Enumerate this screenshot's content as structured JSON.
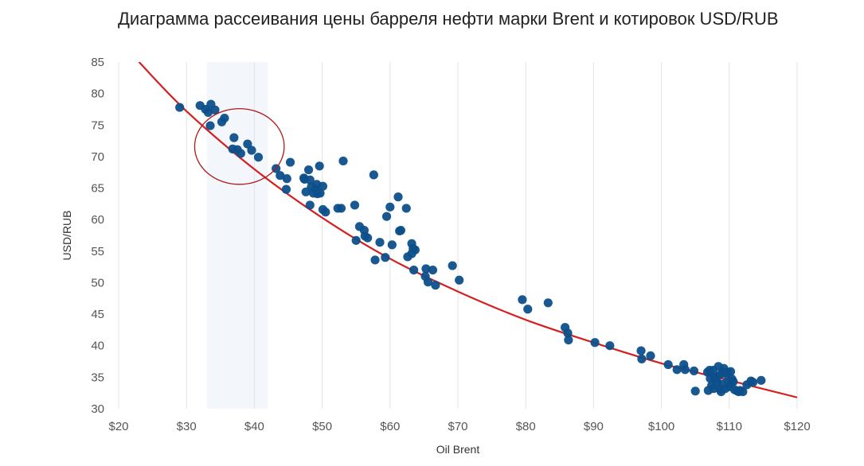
{
  "chart_data": {
    "type": "scatter",
    "title": "Диаграмма рассеивания цены барреля нефти марки Brent и котировок USD/RUB",
    "xlabel": "Oil Brent",
    "ylabel": "USD/RUB",
    "xlim": [
      20,
      120
    ],
    "ylim": [
      30,
      85
    ],
    "x_ticks": [
      20,
      30,
      40,
      50,
      60,
      70,
      80,
      90,
      100,
      110,
      120
    ],
    "x_tick_labels": [
      "$20",
      "$30",
      "$40",
      "$50",
      "$60",
      "$70",
      "$80",
      "$90",
      "$100",
      "$110",
      "$120"
    ],
    "y_ticks": [
      30,
      35,
      40,
      45,
      50,
      55,
      60,
      65,
      70,
      75,
      80,
      85
    ],
    "y_tick_labels": [
      "30",
      "35",
      "40",
      "45",
      "50",
      "55",
      "60",
      "65",
      "70",
      "75",
      "80",
      "85"
    ],
    "grid": "vertical",
    "colors": {
      "points": "#0d4f8b",
      "trendline": "#d42020",
      "highlight_band": "#f3f6fa",
      "ellipse": "#b01818"
    },
    "highlight_band": {
      "x_range": [
        33,
        42
      ]
    },
    "ellipse": {
      "center": [
        37.8,
        71.6
      ],
      "radius_x": 6.6,
      "radius_y": 6.0
    },
    "trendline": {
      "type": "curve",
      "x": [
        23,
        30,
        40,
        50,
        60,
        70,
        80,
        90,
        100,
        110,
        120
      ],
      "y": [
        85.0,
        77.2,
        68.0,
        60.3,
        53.8,
        48.6,
        44.1,
        40.5,
        37.2,
        34.5,
        31.8
      ]
    },
    "points": {
      "x": [
        29,
        32,
        32.8,
        33.2,
        33.6,
        34.2,
        35.2,
        35.6,
        33.5,
        37,
        37.5,
        38,
        39,
        39.6,
        40.6,
        36.8,
        43.2,
        43.8,
        44.8,
        45.3,
        44.7,
        47.3,
        47.6,
        48,
        48.2,
        48.4,
        48.7,
        49.2,
        49.6,
        50.1,
        47.4,
        48.2,
        49,
        49.3,
        50.1,
        50.5,
        52.3,
        52.8,
        49.7,
        53.1,
        54.8,
        55,
        55.5,
        56.2,
        56.7,
        56.3,
        57.8,
        57.6,
        58.5,
        59.3,
        59.5,
        60,
        60.3,
        61.2,
        61.4,
        61.6,
        62.4,
        62.6,
        63.2,
        63.4,
        63.7,
        63.2,
        63.5,
        65.3,
        65.2,
        65.6,
        66.3,
        66.7,
        69.2,
        70.2,
        79.5,
        80.3,
        83.3,
        85.8,
        86.2,
        86.3,
        90.2,
        92.4,
        97,
        97.1,
        98.4,
        101,
        102.3,
        103.3,
        103.5,
        104.8,
        105,
        106.8,
        107.1,
        107.2,
        107.4,
        107.7,
        108,
        108.2,
        108.4,
        108.6,
        108.8,
        109,
        109.2,
        109.4,
        109.6,
        109.8,
        110,
        110.2,
        110.4,
        110.6,
        110.8,
        111.2,
        111.4,
        111.6,
        112,
        112.6,
        113.2,
        113.5,
        114.7,
        107.6,
        108.3,
        109,
        109.7,
        110.3,
        106.9,
        107.8,
        108.9
      ],
      "y": [
        77.8,
        78.1,
        77.5,
        77,
        78.3,
        77.4,
        75.5,
        76.1,
        74.9,
        73,
        71.1,
        70.5,
        72,
        71,
        69.9,
        71.2,
        68.1,
        67,
        66.5,
        69.1,
        64.8,
        66.6,
        64.4,
        67.9,
        66.3,
        65.2,
        64.2,
        65.6,
        68.5,
        65.3,
        66.4,
        62.3,
        64.8,
        64.1,
        61.6,
        61.2,
        61.8,
        61.8,
        64.2,
        69.3,
        62.3,
        56.7,
        58.9,
        58.3,
        57.1,
        57.4,
        53.6,
        67.1,
        56.4,
        54,
        60.5,
        62,
        56,
        63.6,
        58.2,
        58.3,
        61.8,
        54.1,
        56.2,
        55.4,
        55.2,
        54.6,
        52,
        52.2,
        51,
        50.1,
        52,
        49.6,
        52.7,
        50.4,
        47.3,
        45.8,
        46.8,
        42.9,
        42,
        40.9,
        40.5,
        40,
        39.2,
        37.9,
        38.4,
        37,
        36.2,
        37,
        36.2,
        36,
        32.8,
        35.8,
        36.1,
        34.8,
        33.7,
        33.2,
        35,
        34.2,
        36.7,
        33.1,
        32.7,
        35.6,
        36.4,
        33.2,
        35.8,
        34.5,
        33.5,
        35.9,
        34.7,
        34.3,
        33,
        32.8,
        32.7,
        32.9,
        32.7,
        33.8,
        34.4,
        34.2,
        34.5,
        36.1,
        35.2,
        35.8,
        35.7,
        34,
        32.9,
        34.7,
        33.9
      ]
    }
  }
}
